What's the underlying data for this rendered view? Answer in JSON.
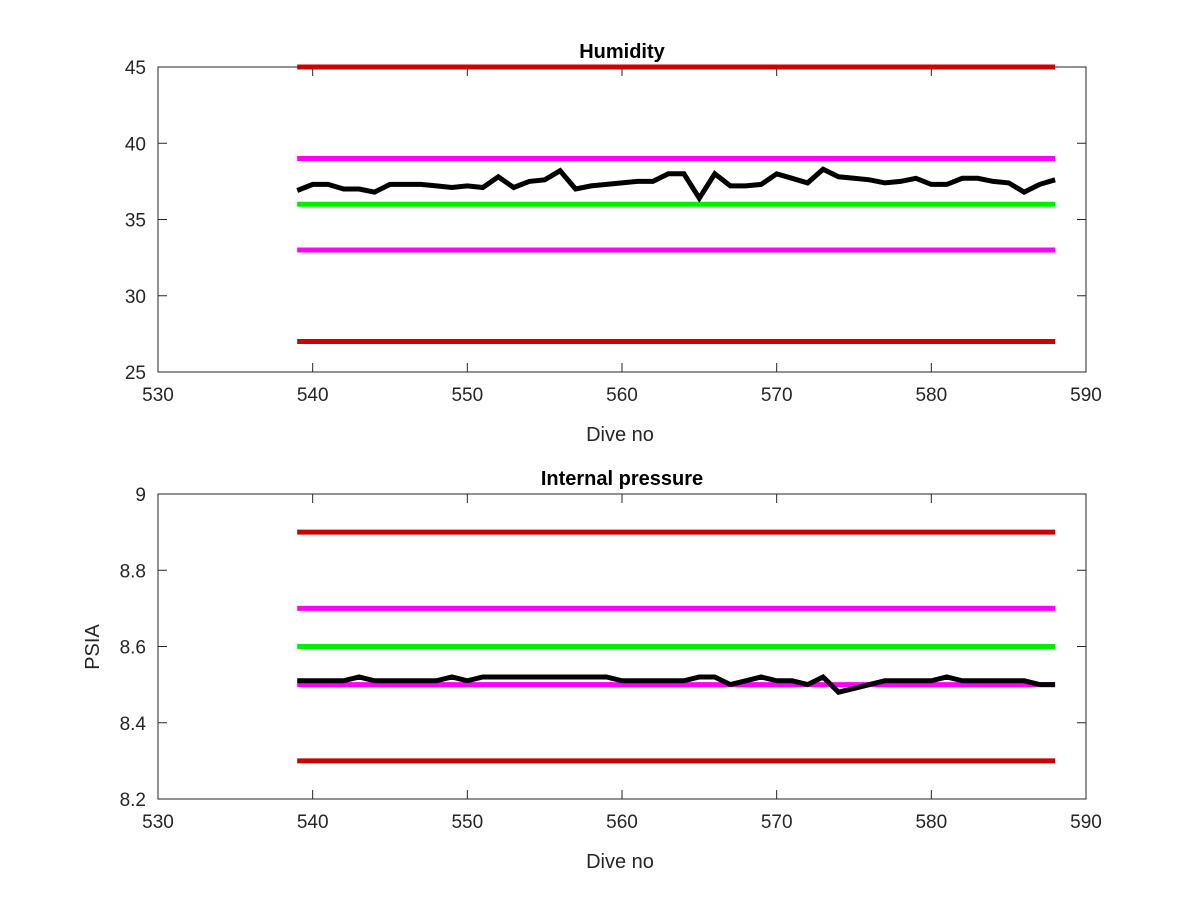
{
  "chart_data": [
    {
      "type": "line",
      "title": "Humidity",
      "xlabel": "Dive no",
      "ylabel": "",
      "xlim": [
        530,
        590
      ],
      "ylim": [
        25,
        45
      ],
      "xticks": [
        530,
        540,
        550,
        560,
        570,
        580,
        590
      ],
      "yticks": [
        25,
        30,
        35,
        40,
        45
      ],
      "grid": false,
      "series": [
        {
          "color": "#cc0000",
          "x": [
            539,
            588
          ],
          "y": [
            45,
            45
          ]
        },
        {
          "color": "#ff00ff",
          "x": [
            539,
            588
          ],
          "y": [
            39,
            39
          ]
        },
        {
          "color": "#00ee00",
          "x": [
            539,
            588
          ],
          "y": [
            36,
            36
          ]
        },
        {
          "color": "#ff00ff",
          "x": [
            539,
            588
          ],
          "y": [
            33,
            33
          ]
        },
        {
          "color": "#cc0000",
          "x": [
            539,
            588
          ],
          "y": [
            27,
            27
          ]
        },
        {
          "color": "#000000",
          "x": [
            539,
            540,
            541,
            542,
            543,
            544,
            545,
            546,
            547,
            548,
            549,
            550,
            551,
            552,
            553,
            554,
            555,
            556,
            557,
            558,
            559,
            560,
            561,
            562,
            563,
            564,
            565,
            566,
            567,
            568,
            569,
            570,
            571,
            572,
            573,
            574,
            575,
            576,
            577,
            578,
            579,
            580,
            581,
            582,
            583,
            584,
            585,
            586,
            587,
            588
          ],
          "y": [
            36.9,
            37.3,
            37.3,
            37.0,
            37.0,
            36.8,
            37.3,
            37.3,
            37.3,
            37.2,
            37.1,
            37.2,
            37.1,
            37.8,
            37.1,
            37.5,
            37.6,
            38.2,
            37.0,
            37.2,
            37.3,
            37.4,
            37.5,
            37.5,
            38.0,
            38.0,
            36.4,
            38.0,
            37.2,
            37.2,
            37.3,
            38.0,
            37.7,
            37.4,
            38.3,
            37.8,
            37.7,
            37.6,
            37.4,
            37.5,
            37.7,
            37.3,
            37.3,
            37.7,
            37.7,
            37.5,
            37.4,
            36.8,
            37.3,
            37.6
          ]
        }
      ]
    },
    {
      "type": "line",
      "title": "Internal pressure",
      "xlabel": "Dive no",
      "ylabel": "PSIA",
      "xlim": [
        530,
        590
      ],
      "ylim": [
        8.2,
        9
      ],
      "xticks": [
        530,
        540,
        550,
        560,
        570,
        580,
        590
      ],
      "yticks": [
        8.2,
        8.4,
        8.6,
        8.8,
        9
      ],
      "grid": false,
      "series": [
        {
          "color": "#cc0000",
          "x": [
            539,
            588
          ],
          "y": [
            8.9,
            8.9
          ]
        },
        {
          "color": "#ff00ff",
          "x": [
            539,
            588
          ],
          "y": [
            8.7,
            8.7
          ]
        },
        {
          "color": "#00ee00",
          "x": [
            539,
            588
          ],
          "y": [
            8.6,
            8.6
          ]
        },
        {
          "color": "#ff00ff",
          "x": [
            539,
            588
          ],
          "y": [
            8.5,
            8.5
          ]
        },
        {
          "color": "#cc0000",
          "x": [
            539,
            588
          ],
          "y": [
            8.3,
            8.3
          ]
        },
        {
          "color": "#000000",
          "x": [
            539,
            540,
            541,
            542,
            543,
            544,
            545,
            546,
            547,
            548,
            549,
            550,
            551,
            552,
            553,
            554,
            555,
            556,
            557,
            558,
            559,
            560,
            561,
            562,
            563,
            564,
            565,
            566,
            567,
            568,
            569,
            570,
            571,
            572,
            573,
            574,
            575,
            576,
            577,
            578,
            579,
            580,
            581,
            582,
            583,
            584,
            585,
            586,
            587,
            588
          ],
          "y": [
            8.51,
            8.51,
            8.51,
            8.51,
            8.52,
            8.51,
            8.51,
            8.51,
            8.51,
            8.51,
            8.52,
            8.51,
            8.52,
            8.52,
            8.52,
            8.52,
            8.52,
            8.52,
            8.52,
            8.52,
            8.52,
            8.51,
            8.51,
            8.51,
            8.51,
            8.51,
            8.52,
            8.52,
            8.5,
            8.51,
            8.52,
            8.51,
            8.51,
            8.5,
            8.52,
            8.48,
            8.49,
            8.5,
            8.51,
            8.51,
            8.51,
            8.51,
            8.52,
            8.51,
            8.51,
            8.51,
            8.51,
            8.51,
            8.5,
            8.5
          ]
        }
      ]
    }
  ]
}
